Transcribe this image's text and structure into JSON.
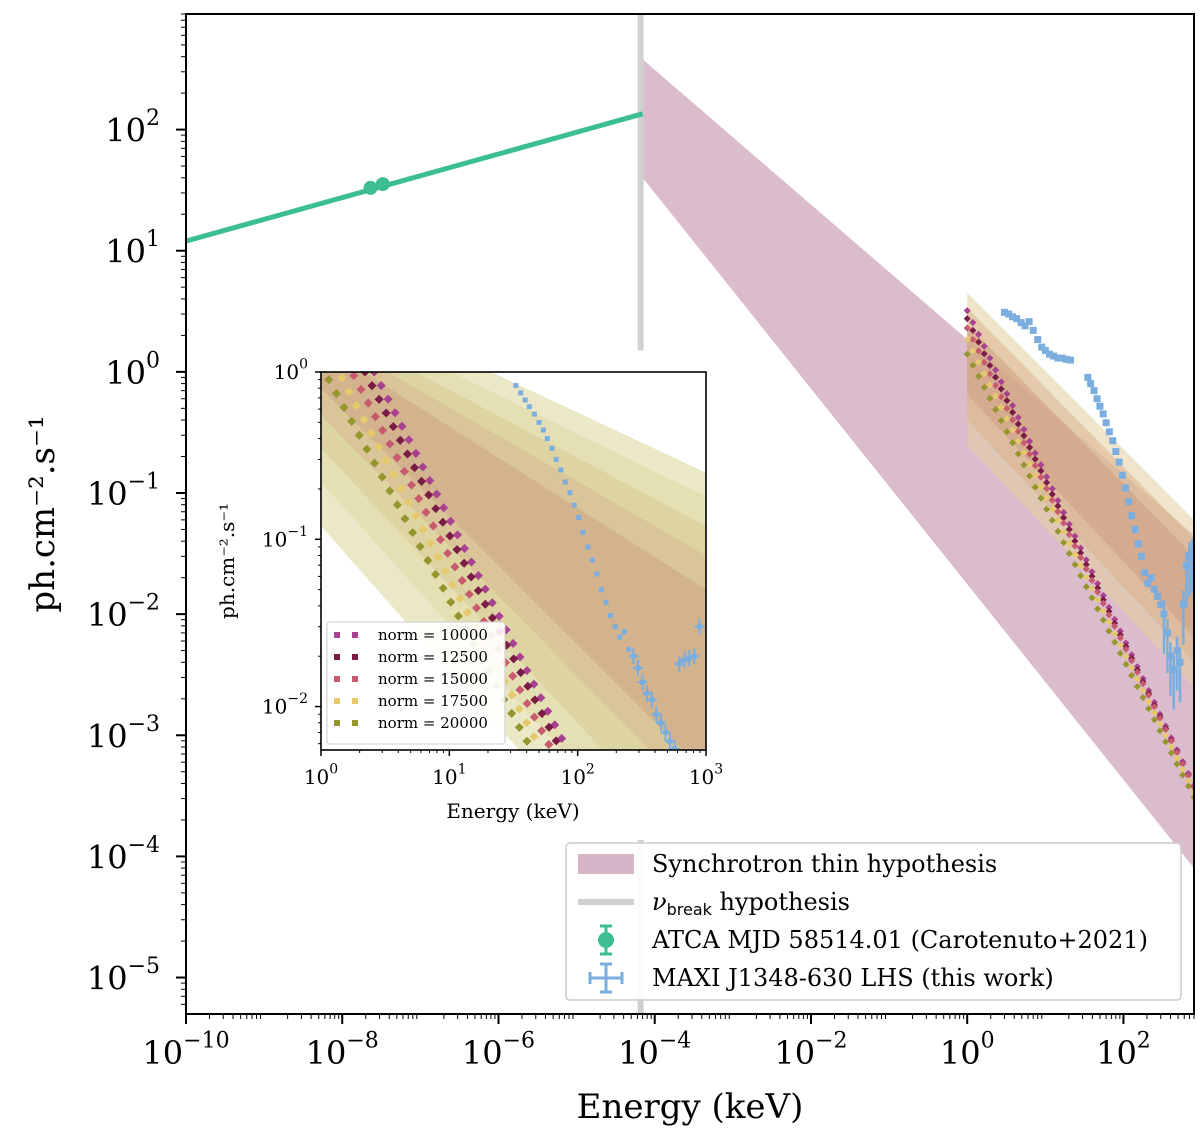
{
  "chart_data": [
    {
      "id": "main",
      "type": "scatter",
      "xscale": "log",
      "yscale": "log",
      "xlabel": "Energy (keV)",
      "ylabel": "ph.cm⁻².s⁻¹",
      "xlim": [
        1e-10,
        800
      ],
      "ylim": [
        5e-06,
        900
      ],
      "x_ticks": [
        {
          "base": "10",
          "exp": "−10",
          "value": 1e-10
        },
        {
          "base": "10",
          "exp": "−8",
          "value": 1e-08
        },
        {
          "base": "10",
          "exp": "−6",
          "value": 1e-06
        },
        {
          "base": "10",
          "exp": "−4",
          "value": 0.0001
        },
        {
          "base": "10",
          "exp": "−2",
          "value": 0.01
        },
        {
          "base": "10",
          "exp": "0",
          "value": 1
        },
        {
          "base": "10",
          "exp": "2",
          "value": 100
        }
      ],
      "y_ticks": [
        {
          "base": "10",
          "exp": "2",
          "value": 100
        },
        {
          "base": "10",
          "exp": "1",
          "value": 10
        },
        {
          "base": "10",
          "exp": "0",
          "value": 1
        },
        {
          "base": "10",
          "exp": "−1",
          "value": 0.1
        },
        {
          "base": "10",
          "exp": "−2",
          "value": 0.01
        },
        {
          "base": "10",
          "exp": "−3",
          "value": 0.001
        },
        {
          "base": "10",
          "exp": "−4",
          "value": 0.0001
        },
        {
          "base": "10",
          "exp": "−5",
          "value": 1e-05
        }
      ],
      "synchrotron_band": {
        "name": "Synchrotron thin hypothesis",
        "color": "#d7b5c8",
        "x": [
          7e-05,
          800
        ],
        "upper": [
          380,
          0.045
        ],
        "lower": [
          40,
          8e-05
        ]
      },
      "synchrotron_band_right": {
        "x": [
          1,
          800
        ],
        "upper": [
          4.5,
          0.06
        ],
        "lower": [
          0.25,
          0.0025
        ]
      },
      "break_line": {
        "name": "ν",
        "subscript": "break",
        "suffix": " hypothesis",
        "color": "#d0d0d0",
        "x": 7e-05,
        "y_range": [
          1.5,
          900
        ]
      },
      "radio_fit": {
        "color": "#3dbd94",
        "x": [
          1e-10,
          7e-05
        ],
        "y": [
          12,
          135
        ]
      },
      "series": [
        {
          "name": "ATCA MJD 58514.01 (Carotenuto+2021)",
          "color": "#3dbd94",
          "x": [
            2.3e-08,
            3.3e-08
          ],
          "y": [
            33,
            35.5
          ]
        },
        {
          "name": "MAXI J1348-630 LHS (this work)",
          "color": "#7baede",
          "x": [
            3,
            3.4,
            3.8,
            4.3,
            4.9,
            5.5,
            6.2,
            7,
            8,
            9,
            10,
            11.3,
            12.8,
            14.5,
            16.4,
            18.5,
            21,
            35,
            38,
            42,
            46,
            50,
            55,
            60,
            66,
            73,
            80,
            88,
            97,
            106,
            117,
            128,
            141,
            155,
            170,
            187,
            205,
            226,
            248,
            273,
            300,
            330,
            365,
            400,
            440,
            485,
            530,
            585,
            640,
            700,
            760
          ],
          "y": [
            3.1,
            3.0,
            2.85,
            2.75,
            2.55,
            2.4,
            2.6,
            2.2,
            1.85,
            1.6,
            1.5,
            1.4,
            1.35,
            1.3,
            1.3,
            1.27,
            1.25,
            0.9,
            0.8,
            0.7,
            0.6,
            0.52,
            0.45,
            0.38,
            0.32,
            0.27,
            0.22,
            0.18,
            0.14,
            0.11,
            0.085,
            0.065,
            0.05,
            0.038,
            0.03,
            0.022,
            0.018,
            0.02,
            0.016,
            0.014,
            0.012,
            0.01,
            0.007,
            0.0045,
            0.0035,
            0.005,
            0.004,
            0.012,
            0.025,
            0.03,
            0.032
          ]
        }
      ],
      "legend": [
        {
          "kind": "band",
          "label": "Synchrotron thin hypothesis",
          "color": "#d7b5c8"
        },
        {
          "kind": "line",
          "label_main": "ν",
          "label_sub": "break",
          "label_rest": " hypothesis",
          "color": "#d0d0d0"
        },
        {
          "kind": "errpoint",
          "label": "ATCA MJD 58514.01 (Carotenuto+2021)",
          "color": "#3dbd94"
        },
        {
          "kind": "errcross",
          "label": "MAXI J1348-630 LHS (this work)",
          "color": "#7baede"
        }
      ],
      "legend_position": "bottom-right"
    },
    {
      "id": "inset",
      "type": "scatter",
      "xscale": "log",
      "yscale": "log",
      "xlabel": "Energy (keV)",
      "ylabel": "ph.cm⁻².s⁻¹",
      "xlim": [
        1,
        1000
      ],
      "ylim": [
        0.0055,
        1
      ],
      "x_ticks": [
        {
          "base": "10",
          "exp": "0",
          "value": 1
        },
        {
          "base": "10",
          "exp": "1",
          "value": 10
        },
        {
          "base": "10",
          "exp": "2",
          "value": 100
        },
        {
          "base": "10",
          "exp": "3",
          "value": 1000
        }
      ],
      "y_ticks": [
        {
          "base": "10",
          "exp": "0",
          "value": 1
        },
        {
          "base": "10",
          "exp": "−1",
          "value": 0.1
        },
        {
          "base": "10",
          "exp": "−2",
          "value": 0.01
        }
      ],
      "bands_color": "#d8d89a",
      "models": [
        {
          "name": "norm = 10000",
          "label": "norm = 10000",
          "color": "#a8418f",
          "x0": 2.6,
          "x1": 800,
          "y0": 1.0,
          "slope": -1.5
        },
        {
          "name": "norm = 12500",
          "label": "norm = 12500",
          "color": "#7a1c45",
          "x0": 2.2,
          "x1": 760,
          "y0": 1.0,
          "slope": -1.48
        },
        {
          "name": "norm = 15000",
          "label": "norm = 15000",
          "color": "#c85a6e",
          "x0": 1.8,
          "x1": 700,
          "y0": 0.95,
          "slope": -1.45
        },
        {
          "name": "norm = 17500",
          "label": "norm = 17500",
          "color": "#e6c96c",
          "x0": 1.45,
          "x1": 650,
          "y0": 0.92,
          "slope": -1.43
        },
        {
          "name": "norm = 20000",
          "label": "norm = 20000",
          "color": "#96962f",
          "x0": 1.15,
          "x1": 620,
          "y0": 0.9,
          "slope": -1.4
        }
      ],
      "series": [
        {
          "name": "MAXI J1348-630 LHS (this work)",
          "color": "#7baede",
          "x": [
            33,
            36,
            39,
            42,
            46,
            50,
            54,
            58,
            63,
            68,
            74,
            80,
            87,
            94,
            102,
            110,
            120,
            130,
            141,
            153,
            166,
            180,
            196,
            213,
            231,
            250,
            272,
            295,
            320,
            347,
            378,
            410,
            445,
            483,
            524,
            570,
            620,
            680,
            740,
            810,
            890
          ],
          "y": [
            0.83,
            0.75,
            0.68,
            0.62,
            0.56,
            0.5,
            0.45,
            0.4,
            0.35,
            0.3,
            0.26,
            0.22,
            0.19,
            0.16,
            0.135,
            0.11,
            0.09,
            0.075,
            0.062,
            0.05,
            0.042,
            0.035,
            0.03,
            0.026,
            0.028,
            0.022,
            0.02,
            0.017,
            0.014,
            0.012,
            0.011,
            0.009,
            0.008,
            0.007,
            0.0062,
            0.0056,
            0.018,
            0.019,
            0.0195,
            0.02,
            0.03
          ]
        }
      ],
      "legend_position": "bottom-left"
    }
  ]
}
